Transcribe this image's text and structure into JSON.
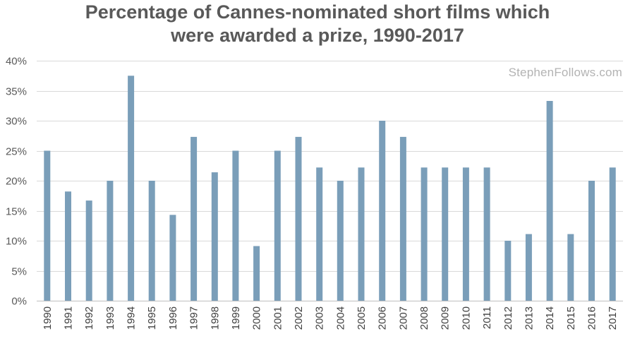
{
  "title": {
    "line1": "Percentage of Cannes-nominated short films which",
    "line2": "were awarded a prize, 1990-2017"
  },
  "watermark": "StephenFollows.com",
  "colors": {
    "bar": "#7a9eb9",
    "grid": "#d9d9d9",
    "axis": "#bfbfbf"
  },
  "chart_data": {
    "type": "bar",
    "categories": [
      "1990",
      "1991",
      "1992",
      "1993",
      "1994",
      "1995",
      "1996",
      "1997",
      "1998",
      "1999",
      "2000",
      "2001",
      "2002",
      "2003",
      "2004",
      "2005",
      "2006",
      "2007",
      "2008",
      "2009",
      "2010",
      "2011",
      "2012",
      "2013",
      "2014",
      "2015",
      "2016",
      "2017"
    ],
    "values": [
      25.0,
      18.2,
      16.7,
      20.0,
      37.5,
      20.0,
      14.3,
      27.3,
      21.4,
      25.0,
      9.1,
      25.0,
      27.3,
      22.2,
      20.0,
      22.2,
      30.0,
      27.3,
      22.2,
      22.2,
      22.2,
      22.2,
      10.0,
      11.1,
      33.3,
      11.1,
      20.0,
      22.2
    ],
    "ylim": [
      0,
      40
    ],
    "yticks": [
      "0%",
      "5%",
      "10%",
      "15%",
      "20%",
      "25%",
      "30%",
      "35%",
      "40%"
    ],
    "ytick_values": [
      0,
      5,
      10,
      15,
      20,
      25,
      30,
      35,
      40
    ],
    "grid": true,
    "xlabel": "",
    "ylabel": ""
  }
}
